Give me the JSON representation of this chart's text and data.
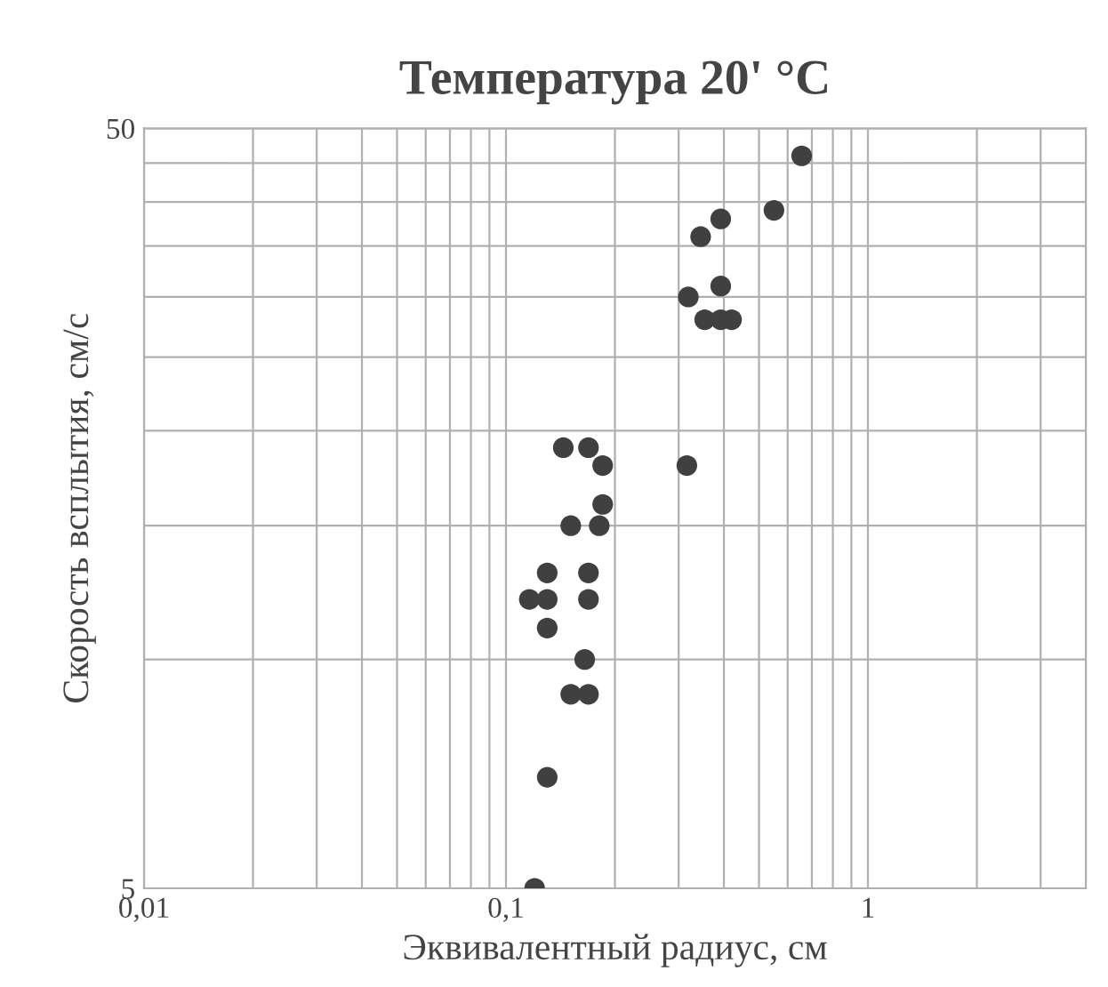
{
  "chart_data": {
    "type": "scatter",
    "title": "Температура 20' °C",
    "xlabel": "Эквивалентный радиус, см",
    "ylabel": "Скорость всплытия, см/с",
    "log": "xy",
    "grid": true,
    "marker": "circle",
    "xlim": [
      0.01,
      4
    ],
    "ylim": [
      5,
      50
    ],
    "xticks": [
      {
        "value": 0.01,
        "label": "0,01"
      },
      {
        "value": 0.02,
        "label": null
      },
      {
        "value": 0.03,
        "label": null
      },
      {
        "value": 0.04,
        "label": null
      },
      {
        "value": 0.05,
        "label": null
      },
      {
        "value": 0.06,
        "label": null
      },
      {
        "value": 0.07,
        "label": null
      },
      {
        "value": 0.08,
        "label": null
      },
      {
        "value": 0.09,
        "label": null
      },
      {
        "value": 0.1,
        "label": "0,1"
      },
      {
        "value": 0.2,
        "label": null
      },
      {
        "value": 0.3,
        "label": null
      },
      {
        "value": 0.4,
        "label": null
      },
      {
        "value": 0.5,
        "label": null
      },
      {
        "value": 0.6,
        "label": null
      },
      {
        "value": 0.7,
        "label": null
      },
      {
        "value": 0.8,
        "label": null
      },
      {
        "value": 0.9,
        "label": null
      },
      1,
      {
        "value": 2,
        "label": null
      },
      {
        "value": 3,
        "label": null
      }
    ],
    "yticks": [
      5,
      {
        "value": 10,
        "label": null
      },
      {
        "value": 15,
        "label": null
      },
      {
        "value": 20,
        "label": null
      },
      {
        "value": 25,
        "label": null
      },
      {
        "value": 30,
        "label": null
      },
      {
        "value": 35,
        "label": null
      },
      {
        "value": 40,
        "label": null
      },
      {
        "value": 45,
        "label": null
      },
      50
    ],
    "series": [
      {
        "color": "#404040",
        "x": [
          0.12,
          0.13,
          0.151,
          0.169,
          0.165,
          0.13,
          0.116,
          0.13,
          0.169,
          0.13,
          0.169,
          0.151,
          0.181,
          0.185,
          0.144,
          0.169,
          0.185,
          0.316,
          0.319,
          0.354,
          0.392,
          0.42,
          0.392,
          0.345,
          0.392,
          0.55,
          0.656
        ],
        "values": [
          5,
          7,
          9,
          9,
          10,
          11,
          12,
          12,
          12,
          13,
          13,
          15,
          15,
          16,
          19,
          19,
          18,
          18,
          30,
          28,
          28,
          28,
          31,
          36,
          38,
          39,
          46
        ]
      }
    ]
  }
}
